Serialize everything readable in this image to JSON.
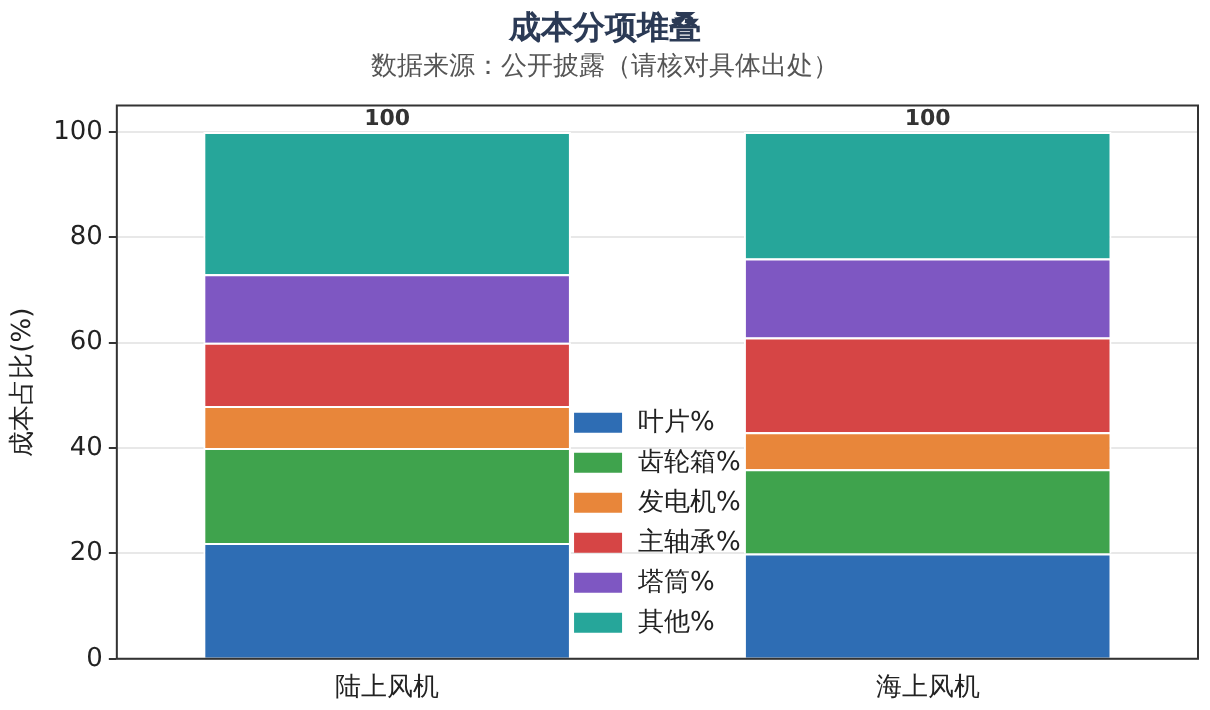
{
  "chart_data": {
    "type": "bar",
    "title": "成本分项堆叠",
    "subtitle": "数据来源：公开披露（请核对具体出处）",
    "ylabel": "成本占比(%)",
    "categories": [
      "陆上风机",
      "海上风机"
    ],
    "stacked": true,
    "series": [
      {
        "name": "叶片%",
        "color": "#2e6db4",
        "values": [
          22,
          20
        ]
      },
      {
        "name": "齿轮箱%",
        "color": "#3fa34d",
        "values": [
          18,
          16
        ]
      },
      {
        "name": "发电机%",
        "color": "#e8863a",
        "values": [
          8,
          7
        ]
      },
      {
        "name": "主轴承%",
        "color": "#d64545",
        "values": [
          12,
          18
        ]
      },
      {
        "name": "塔筒%",
        "color": "#7e57c2",
        "values": [
          13,
          15
        ]
      },
      {
        "name": "其他%",
        "color": "#26a69a",
        "values": [
          27,
          24
        ]
      }
    ],
    "totals": [
      "100",
      "100"
    ],
    "ylim": [
      0,
      105
    ],
    "yticks": [
      0,
      20,
      40,
      60,
      80,
      100
    ],
    "grid": "y",
    "legend": "bottom"
  }
}
